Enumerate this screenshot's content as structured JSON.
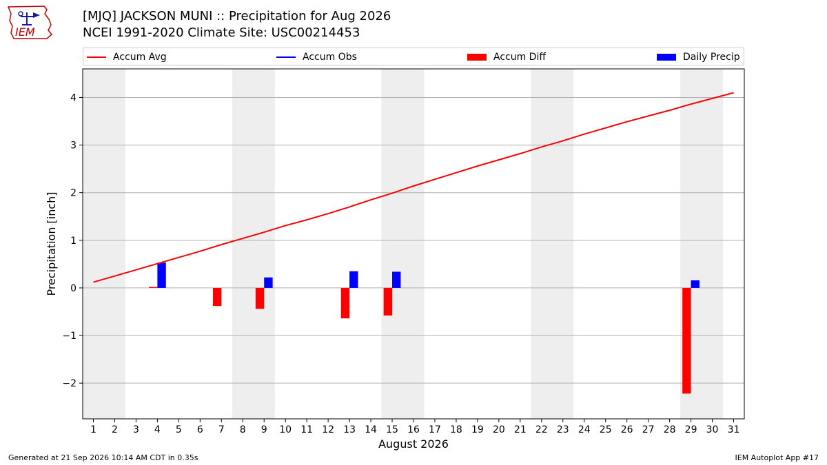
{
  "header": {
    "title_line1": "[MJQ] JACKSON MUNI :: Precipitation for Aug 2026",
    "title_line2": "NCEI 1991-2020 Climate Site: USC00214453",
    "logo_text": "IEM"
  },
  "legend": {
    "accum_avg": "Accum Avg",
    "accum_obs": "Accum Obs",
    "accum_diff": "Accum Diff",
    "daily_precip": "Daily Precip"
  },
  "footer": {
    "generated": "Generated at 21 Sep 2026 10:14 AM CDT in 0.35s",
    "app": "IEM Autoplot App #17"
  },
  "colors": {
    "accum_avg": "#ff0000",
    "accum_obs": "#0000ff",
    "accum_diff": "#ff0000",
    "daily_precip": "#0000ff",
    "weekend_shade": "#eeeeee",
    "grid": "#b0b0b0"
  },
  "chart_data": {
    "type": "bar",
    "xlabel": "August 2026",
    "ylabel": "Precipitation [inch]",
    "xlim": [
      0.5,
      31.5
    ],
    "ylim": [
      -2.75,
      4.6
    ],
    "yticks": [
      -2,
      -1,
      0,
      1,
      2,
      3,
      4
    ],
    "ytick_labels": [
      "−2",
      "−1",
      "0",
      "1",
      "2",
      "3",
      "4"
    ],
    "xticks": [
      1,
      2,
      3,
      4,
      5,
      6,
      7,
      8,
      9,
      10,
      11,
      12,
      13,
      14,
      15,
      16,
      17,
      18,
      19,
      20,
      21,
      22,
      23,
      24,
      25,
      26,
      27,
      28,
      29,
      30,
      31
    ],
    "grid": "horizontal",
    "weekend_spans": [
      [
        1,
        2
      ],
      [
        8,
        9
      ],
      [
        15,
        16
      ],
      [
        22,
        23
      ],
      [
        29,
        30
      ]
    ],
    "series": [
      {
        "name": "Accum Avg",
        "type": "line",
        "x": [
          1,
          2,
          3,
          4,
          5,
          6,
          7,
          8,
          9,
          10,
          11,
          12,
          13,
          14,
          15,
          16,
          17,
          18,
          19,
          20,
          21,
          22,
          23,
          24,
          25,
          26,
          27,
          28,
          29,
          30,
          31
        ],
        "values": [
          0.12,
          0.25,
          0.38,
          0.51,
          0.64,
          0.77,
          0.91,
          1.04,
          1.17,
          1.31,
          1.43,
          1.56,
          1.7,
          1.85,
          1.99,
          2.14,
          2.28,
          2.42,
          2.56,
          2.69,
          2.82,
          2.96,
          3.09,
          3.23,
          3.36,
          3.49,
          3.61,
          3.73,
          3.86,
          3.98,
          4.1
        ]
      },
      {
        "name": "Accum Diff",
        "type": "bar",
        "x": [
          4,
          7,
          9,
          13,
          15,
          29
        ],
        "values": [
          0.02,
          -0.38,
          -0.44,
          -0.64,
          -0.58,
          -2.22
        ]
      },
      {
        "name": "Daily Precip",
        "type": "bar",
        "x": [
          4,
          9,
          13,
          15,
          29
        ],
        "values": [
          0.53,
          0.22,
          0.35,
          0.34,
          0.16
        ]
      },
      {
        "name": "Accum Obs",
        "type": "line",
        "x": [],
        "values": []
      }
    ]
  }
}
